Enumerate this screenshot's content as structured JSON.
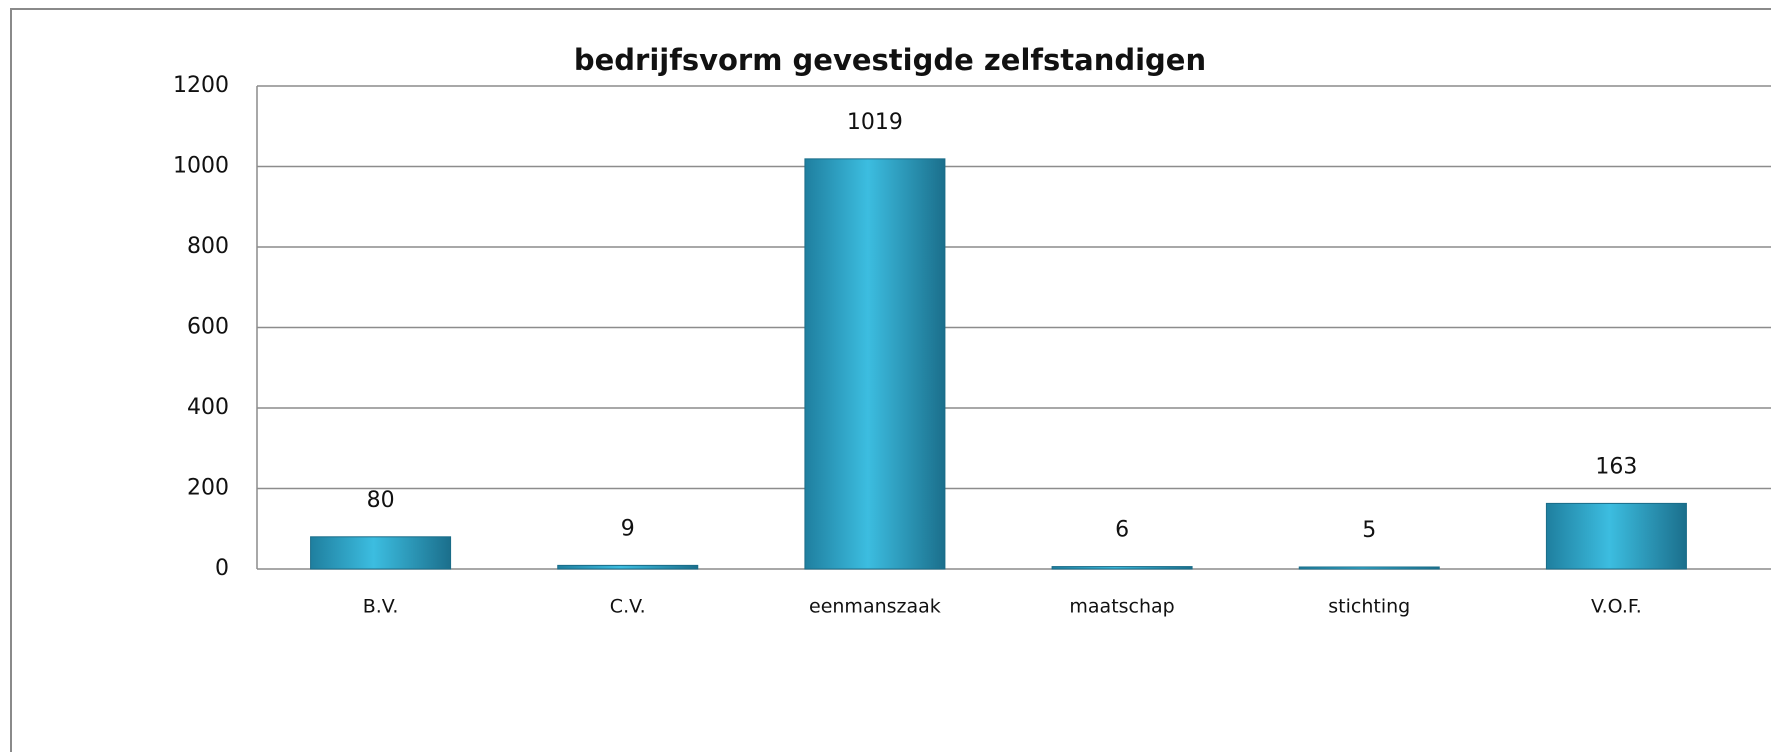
{
  "chart_data": {
    "type": "bar",
    "title": "bedrijfsvorm gevestigde zelfstandigen",
    "categories": [
      "B.V.",
      "C.V.",
      "eenmanszaak",
      "maatschap",
      "stichting",
      "V.O.F."
    ],
    "values": [
      80,
      9,
      1019,
      6,
      5,
      163
    ],
    "color": "#2fa3c8",
    "ylim": [
      0,
      1200
    ],
    "yticks": [
      0,
      200,
      400,
      600,
      800,
      1000,
      1200
    ],
    "grid": true
  }
}
